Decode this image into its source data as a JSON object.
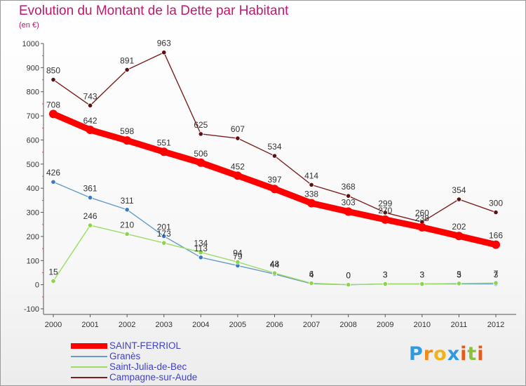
{
  "chart_data": {
    "type": "line",
    "title": "Evolution du Montant de la Dette par Habitant",
    "subtitle": "(en €)",
    "x": [
      "2000",
      "2001",
      "2002",
      "2003",
      "2004",
      "2005",
      "2006",
      "2007",
      "2008",
      "2009",
      "2010",
      "2011",
      "2012"
    ],
    "ylim": [
      -100,
      1000
    ],
    "yticks": [
      "-100",
      "0",
      "100",
      "200",
      "300",
      "400",
      "500",
      "600",
      "700",
      "800",
      "900",
      "1000"
    ],
    "grid": false,
    "legend_position": "bottom-left",
    "series": [
      {
        "name": "SAINT-FERRIOL",
        "color": "#ff0000",
        "values": [
          708,
          642,
          598,
          551,
          506,
          452,
          397,
          338,
          303,
          270,
          238,
          202,
          166
        ],
        "labels": [
          "708",
          "642",
          "598",
          "551",
          "506",
          "452",
          "397",
          "338",
          "303",
          "270",
          "238",
          "202",
          "166"
        ]
      },
      {
        "name": "Granès",
        "color": "#6699cc",
        "values": [
          426,
          361,
          311,
          201,
          113,
          79,
          44,
          4,
          0,
          3,
          3,
          3,
          3
        ],
        "labels": [
          "426",
          "361",
          "311",
          "201",
          "113",
          "79",
          "44",
          "4",
          "0",
          "3",
          "3",
          "3",
          "3"
        ]
      },
      {
        "name": "Saint-Julia-de-Bec",
        "color": "#99dd66",
        "values": [
          15,
          246,
          210,
          173,
          134,
          94,
          48,
          6,
          0,
          3,
          3,
          5,
          7
        ],
        "labels": [
          "15",
          "246",
          "210",
          "173",
          "134",
          "94",
          "48",
          "6",
          "0",
          "3",
          "3",
          "5",
          "7"
        ]
      },
      {
        "name": "Campagne-sur-Aude",
        "color": "#7a1f1f",
        "values": [
          850,
          743,
          891,
          963,
          625,
          607,
          534,
          414,
          368,
          299,
          260,
          354,
          300
        ],
        "labels": [
          "850",
          "743",
          "891",
          "963",
          "625",
          "607",
          "534",
          "414",
          "368",
          "299",
          "260",
          "354",
          "300"
        ]
      }
    ]
  },
  "logo": {
    "letters": [
      "P",
      "r",
      "o",
      "x",
      "i",
      "t",
      "i"
    ],
    "colors": [
      "#3399dd",
      "#f08a1d",
      "#f0b21d",
      "#3399dd",
      "#e85a1a",
      "#88c43a",
      "#e85a1a"
    ]
  }
}
